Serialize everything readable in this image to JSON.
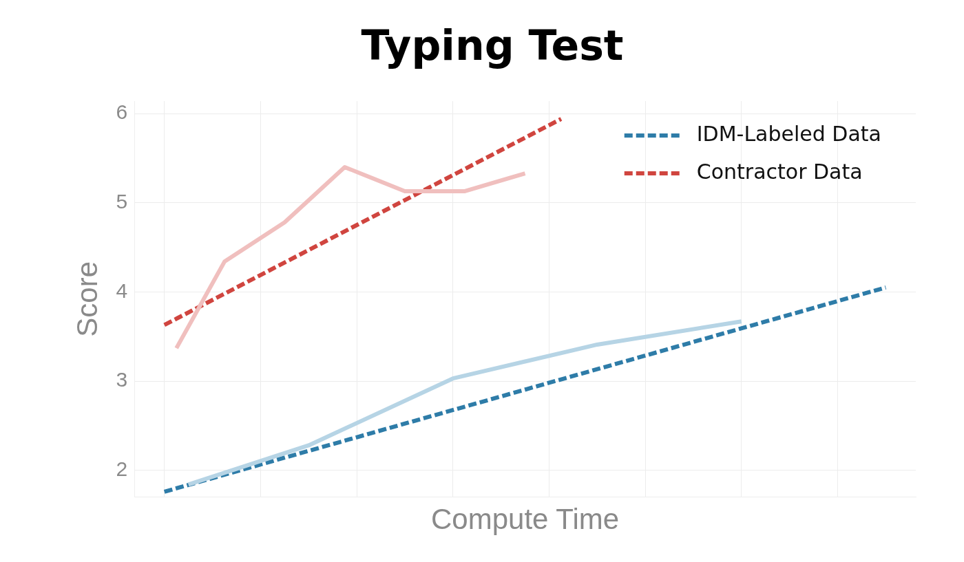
{
  "chart_data": {
    "type": "line",
    "title": "Typing Test",
    "xlabel": "Compute Time",
    "ylabel": "Score",
    "categories": [
      null,
      null,
      null,
      null,
      null,
      null,
      null,
      null,
      null,
      null,
      null,
      null,
      null,
      null,
      null,
      null,
      null,
      null,
      null,
      null,
      null,
      null,
      null,
      null,
      null,
      null,
      null,
      null,
      null,
      null,
      null,
      null,
      null,
      null,
      null,
      null,
      null,
      null,
      null,
      null,
      null,
      null,
      null,
      null,
      null,
      null,
      null,
      null,
      null,
      null,
      null,
      null,
      null,
      null,
      null,
      null,
      null,
      null,
      null,
      null,
      null,
      null,
      null,
      null,
      null
    ],
    "ylim": [
      1.7,
      6.14
    ],
    "yticks": [
      2,
      3,
      4,
      5,
      6
    ],
    "grid": true,
    "legend": "top right",
    "tick_labels": "y",
    "marker": "none",
    "series": [
      {
        "color": "#f0bfbe",
        "line_style": "solid",
        "values": [
          null,
          null,
          null,
          3.37,
          null,
          null,
          null,
          4.34,
          null,
          null,
          null,
          null,
          4.78,
          null,
          null,
          null,
          null,
          5.4,
          null,
          null,
          null,
          null,
          5.13,
          null,
          null,
          null,
          null,
          5.13,
          null,
          null,
          null,
          null,
          5.33,
          null,
          null,
          null,
          null,
          null,
          null,
          null,
          null,
          null,
          null,
          null,
          null,
          null,
          null,
          null,
          null,
          null,
          null,
          null,
          null,
          null,
          null,
          null,
          null,
          null,
          null,
          null,
          null,
          null,
          null,
          null,
          null
        ]
      },
      {
        "color": "#b6d4e5",
        "line_style": "solid",
        "values": [
          null,
          null,
          null,
          null,
          1.84,
          null,
          null,
          null,
          null,
          null,
          null,
          null,
          null,
          null,
          2.28,
          null,
          null,
          null,
          null,
          null,
          null,
          null,
          null,
          null,
          null,
          null,
          3.03,
          null,
          null,
          null,
          null,
          null,
          null,
          null,
          null,
          null,
          null,
          null,
          3.41,
          null,
          null,
          null,
          null,
          null,
          null,
          null,
          null,
          null,
          null,
          null,
          3.67,
          null,
          null,
          null,
          null,
          null,
          null,
          null,
          null,
          null,
          null,
          null,
          null,
          null,
          null
        ]
      },
      {
        "name": "IDM-Labeled Data",
        "color": "#2e7ca8",
        "line_style": "dashed",
        "values": [
          null,
          null,
          1.76,
          null,
          null,
          null,
          null,
          null,
          null,
          null,
          null,
          null,
          null,
          null,
          null,
          null,
          null,
          null,
          null,
          null,
          null,
          null,
          null,
          null,
          null,
          null,
          null,
          null,
          null,
          null,
          null,
          null,
          null,
          null,
          null,
          null,
          null,
          null,
          null,
          null,
          null,
          null,
          null,
          null,
          null,
          null,
          null,
          null,
          null,
          null,
          null,
          null,
          null,
          null,
          null,
          null,
          null,
          null,
          null,
          null,
          null,
          null,
          4.05,
          null,
          null
        ]
      },
      {
        "name": "Contractor Data",
        "color": "#d0453f",
        "line_style": "dashed",
        "values": [
          null,
          null,
          3.63,
          null,
          null,
          null,
          null,
          null,
          null,
          null,
          null,
          null,
          null,
          null,
          null,
          null,
          null,
          null,
          null,
          null,
          null,
          null,
          null,
          null,
          null,
          null,
          null,
          null,
          null,
          null,
          null,
          null,
          null,
          null,
          null,
          5.94,
          null,
          null,
          null,
          null,
          null,
          null,
          null,
          null,
          null,
          null,
          null,
          null,
          null,
          null,
          null,
          null,
          null,
          null,
          null,
          null,
          null,
          null,
          null,
          null,
          null,
          null,
          null,
          null,
          null
        ]
      }
    ]
  }
}
